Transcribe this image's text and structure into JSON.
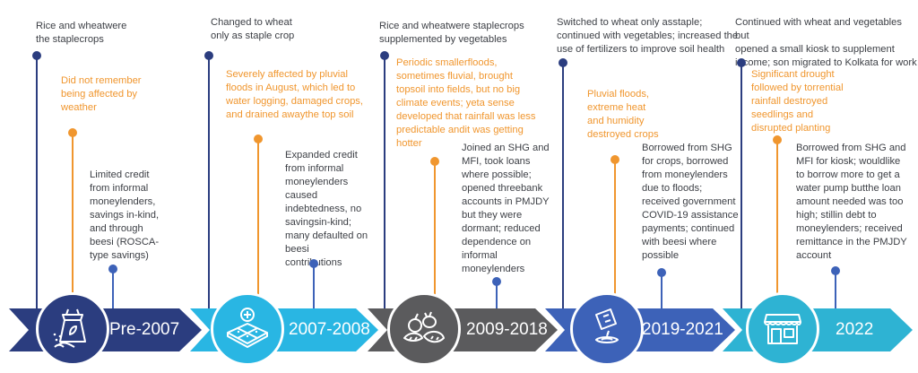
{
  "colors": {
    "navy": "#2b3d7f",
    "cyan": "#29b6e3",
    "gray": "#5b5b5d",
    "blue": "#3d62b8",
    "teal": "#2eb3d3",
    "orange": "#f0962e",
    "text": "#3c3f45"
  },
  "periods": [
    {
      "label": "Pre-2007",
      "icon": "seed-bag-icon",
      "crops": [
        "Rice and wheatwere",
        "the staplecrops"
      ],
      "climate": [
        "Did not remember",
        "being affected by",
        "weather"
      ],
      "finance": [
        "Limited credit",
        "from informal",
        "moneylenders,",
        "savings in-kind,",
        "and through",
        "beesi (ROSCA-",
        "type savings)"
      ]
    },
    {
      "label": "2007-2008",
      "icon": "field-rain-icon",
      "crops": [
        "Changed to wheat",
        "only as staple crop"
      ],
      "climate": [
        "Severely affected by pluvial",
        "floods in August, which led to",
        "water logging, damaged crops,",
        "and drained awaythe top soil"
      ],
      "finance": [
        "Expanded credit",
        "from informal",
        "moneylenders",
        "caused",
        "indebtedness, no",
        "savingsin-kind;",
        "many defaulted on",
        "beesi",
        "contributions"
      ]
    },
    {
      "label": "2009-2018",
      "icon": "vegetables-icon",
      "crops": [
        "Rice and wheatwere staplecrops",
        "supplemented by vegetables"
      ],
      "climate": [
        "Periodic smallerfloods,",
        "sometimes fluvial, brought",
        "topsoil into fields, but no big",
        "climate events; yeta sense",
        "developed that rainfall was less",
        "predictable andit was getting",
        "hotter"
      ],
      "finance": [
        "Joined an SHG and",
        "MFI, took loans",
        "where possible;",
        "opened threebank",
        "accounts in PMJDY",
        "but they were",
        "dormant; reduced",
        "dependence on",
        "informal",
        "moneylenders"
      ]
    },
    {
      "label": "2019-2021",
      "icon": "seed-planting-icon",
      "crops": [
        "Switched to wheat only asstaple;",
        "continued with vegetables; increased the",
        "use of fertilizers to improve soil health"
      ],
      "climate": [
        "Pluvial floods,",
        "extreme heat",
        "and humidity",
        "destroyed crops"
      ],
      "finance": [
        "Borrowed from SHG",
        "for crops,  borrowed",
        "from moneylenders",
        "due to floods;",
        "received government",
        "COVID-19 assistance",
        "payments; continued",
        "with beesi where",
        "possible"
      ]
    },
    {
      "label": "2022",
      "icon": "kiosk-shop-icon",
      "crops": [
        "Continued with wheat and vegetables but",
        "opened a small kiosk to supplement",
        "income; son migrated to Kolkata for work"
      ],
      "climate": [
        "Significant drought",
        "followed by  torrential",
        "rainfall destroyed",
        "seedlings and",
        "disrupted planting"
      ],
      "finance": [
        "Borrowed from SHG and",
        "MFI for kiosk; wouldlike",
        "to borrow more to get a",
        "water pump butthe loan",
        "amount needed was too",
        "high; stillin debt to",
        "moneylenders; received",
        "remittance in the PMJDY",
        "account"
      ]
    }
  ]
}
